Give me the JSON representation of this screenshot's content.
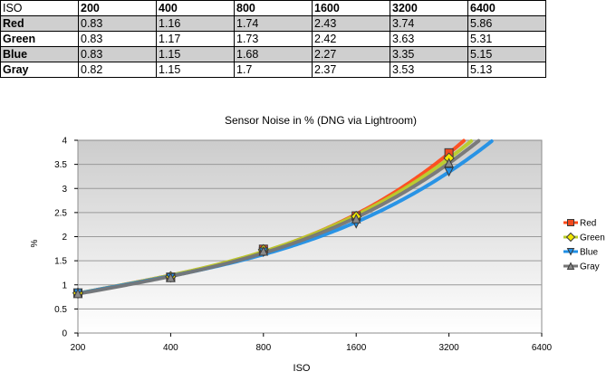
{
  "table": {
    "corner": "ISO",
    "headers": [
      "200",
      "400",
      "800",
      "1600",
      "3200",
      "6400"
    ],
    "rows": [
      {
        "label": "Red",
        "values": [
          "0.83",
          "1.16",
          "1.74",
          "2.43",
          "3.74",
          "5.86"
        ]
      },
      {
        "label": "Green",
        "values": [
          "0.83",
          "1.17",
          "1.73",
          "2.42",
          "3.63",
          "5.31"
        ]
      },
      {
        "label": "Blue",
        "values": [
          "0.83",
          "1.15",
          "1.68",
          "2.27",
          "3.35",
          "5.15"
        ]
      },
      {
        "label": "Gray",
        "values": [
          "0.82",
          "1.15",
          "1.7",
          "2.37",
          "3.53",
          "5.13"
        ]
      }
    ]
  },
  "chart_data": {
    "type": "line",
    "title": "Sensor Noise in % (DNG via Lightroom)",
    "xlabel": "ISO",
    "ylabel": "%",
    "x_scale": "log2",
    "xticks": [
      "200",
      "400",
      "800",
      "1600",
      "3200",
      "6400"
    ],
    "yticks": [
      "0",
      "0.5",
      "1",
      "1.5",
      "2",
      "2.5",
      "3",
      "3.5",
      "4"
    ],
    "xlim": [
      200,
      6400
    ],
    "ylim": [
      0,
      4
    ],
    "grid": "horizontal",
    "legend_position": "right",
    "x": [
      200,
      400,
      800,
      1600,
      3200
    ],
    "series": [
      {
        "name": "Red",
        "values": [
          0.83,
          1.16,
          1.74,
          2.43,
          3.74
        ],
        "color": "#ff4a1a",
        "fill": "#f04a1f",
        "marker": "square"
      },
      {
        "name": "Green",
        "values": [
          0.83,
          1.17,
          1.73,
          2.42,
          3.63
        ],
        "color": "#b8cc2a",
        "fill": "#f2e600",
        "marker": "diamond"
      },
      {
        "name": "Blue",
        "values": [
          0.83,
          1.15,
          1.68,
          2.27,
          3.35
        ],
        "color": "#1f8fe6",
        "fill": "#1f8fe6",
        "marker": "triangle-down"
      },
      {
        "name": "Gray",
        "values": [
          0.82,
          1.15,
          1.7,
          2.37,
          3.53
        ],
        "color": "#767676",
        "fill": "#8a8a8a",
        "marker": "triangle-up"
      }
    ]
  }
}
